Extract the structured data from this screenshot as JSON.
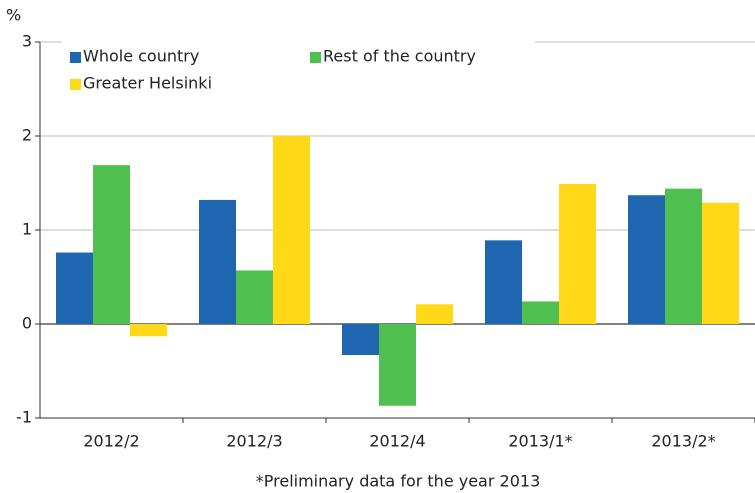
{
  "chart_data": {
    "type": "bar",
    "y_label": "%",
    "footnote": "*Preliminary data for the year 2013",
    "categories": [
      "2012/2",
      "2012/3",
      "2012/4",
      "2013/1*",
      "2013/2*"
    ],
    "series": [
      {
        "name": "Whole country",
        "color": "#1f66b0",
        "values": [
          0.76,
          1.32,
          -0.33,
          0.89,
          1.37
        ]
      },
      {
        "name": "Rest of the country",
        "color": "#4fbf4f",
        "values": [
          1.69,
          0.57,
          -0.87,
          0.24,
          1.44
        ]
      },
      {
        "name": "Greater Helsinki",
        "color": "#ffd817",
        "values": [
          -0.13,
          2.0,
          0.21,
          1.49,
          1.29
        ]
      }
    ],
    "ylim": [
      -1,
      3
    ],
    "yticks": [
      -1,
      0,
      1,
      2,
      3
    ],
    "grid": true,
    "legend": "upper left"
  }
}
